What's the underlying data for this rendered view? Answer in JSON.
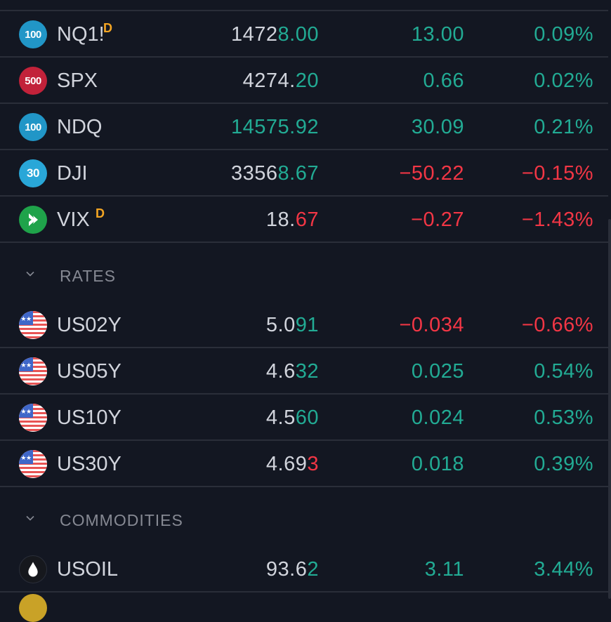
{
  "colors": {
    "background": "#131722",
    "up": "#22ab94",
    "down": "#f23645",
    "neutral": "#d1d4dc",
    "divider": "#2a2e39",
    "delayed_tag": "#f5a623"
  },
  "indices": [
    {
      "icon": "badge-100-icon",
      "badge": "100",
      "symbol": "NQ1!",
      "tag": "D",
      "last_a": "1472",
      "last_b": "8.00",
      "last_b_color": "up",
      "change": "13.00",
      "change_pct": "0.09%",
      "dir": "up"
    },
    {
      "icon": "badge-500-icon",
      "badge": "500",
      "symbol": "SPX",
      "tag": "",
      "last_a": "4274.",
      "last_b": "20",
      "last_b_color": "up",
      "change": "0.66",
      "change_pct": "0.02%",
      "dir": "up"
    },
    {
      "icon": "badge-100-icon",
      "badge": "100",
      "symbol": "NDQ",
      "tag": "",
      "last_a": "",
      "last_b": "14575.92",
      "last_b_color": "up",
      "change": "30.09",
      "change_pct": "0.21%",
      "dir": "up"
    },
    {
      "icon": "badge-30-icon",
      "badge": "30",
      "symbol": "DJI",
      "tag": "",
      "last_a": "3356",
      "last_b": "8.67",
      "last_b_color": "up",
      "change": "−50.22",
      "change_pct": "−0.15%",
      "dir": "down"
    },
    {
      "icon": "vix-icon",
      "badge": "",
      "symbol": "VIX",
      "tag": "D",
      "last_a": "18.",
      "last_b": "67",
      "last_b_color": "down",
      "change": "−0.27",
      "change_pct": "−1.43%",
      "dir": "down"
    }
  ],
  "rates_section": {
    "title": "RATES",
    "collapse_icon": "chevron-down-icon"
  },
  "rates": [
    {
      "icon": "us-flag-icon",
      "symbol": "US02Y",
      "last_a": "5.0",
      "last_b": "91",
      "last_b_color": "up",
      "change": "−0.034",
      "change_pct": "−0.66%",
      "dir": "down"
    },
    {
      "icon": "us-flag-icon",
      "symbol": "US05Y",
      "last_a": "4.6",
      "last_b": "32",
      "last_b_color": "up",
      "change": "0.025",
      "change_pct": "0.54%",
      "dir": "up"
    },
    {
      "icon": "us-flag-icon",
      "symbol": "US10Y",
      "last_a": "4.5",
      "last_b": "60",
      "last_b_color": "up",
      "change": "0.024",
      "change_pct": "0.53%",
      "dir": "up"
    },
    {
      "icon": "us-flag-icon",
      "symbol": "US30Y",
      "last_a": "4.69",
      "last_b": "3",
      "last_b_color": "down",
      "change": "0.018",
      "change_pct": "0.39%",
      "dir": "up"
    }
  ],
  "commodities_section": {
    "title": "COMMODITIES",
    "collapse_icon": "chevron-down-icon"
  },
  "commodities": [
    {
      "icon": "oil-drop-icon",
      "symbol": "USOIL",
      "last_a": "93.6",
      "last_b": "2",
      "last_b_color": "up",
      "change": "3.11",
      "change_pct": "3.44%",
      "dir": "up"
    }
  ]
}
